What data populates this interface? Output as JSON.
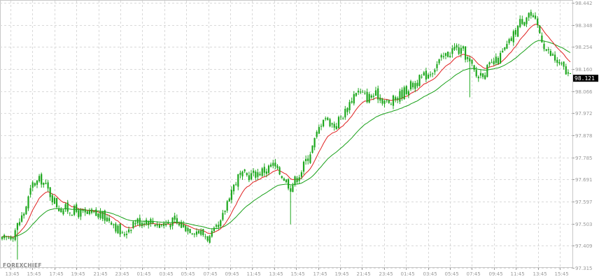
{
  "brand": {
    "label": "FOREXCHIEF"
  },
  "chart_data": {
    "type": "candlestick",
    "y_ticks": [
      97.315,
      97.409,
      97.503,
      97.597,
      97.691,
      97.785,
      97.878,
      97.972,
      98.066,
      98.16,
      98.254,
      98.348,
      98.442
    ],
    "y_tick_labels": [
      "97.315",
      "97.409",
      "97.503",
      "97.597",
      "97.691",
      "97.785",
      "97.878",
      "97.972",
      "98.066",
      "98.160",
      "98.254",
      "98.348",
      "98.442"
    ],
    "ylim": [
      97.315,
      98.442
    ],
    "x_tick_labels": [
      "13:45",
      "15:45",
      "17:45",
      "19:45",
      "21:45",
      "23:45",
      "01:45",
      "03:45",
      "05:45",
      "07:45",
      "09:45",
      "11:45",
      "13:45",
      "15:45",
      "17:45",
      "19:45",
      "21:45",
      "23:45",
      "01:45",
      "03:45",
      "05:45",
      "07:45",
      "09:45",
      "11:45",
      "13:45",
      "15:45"
    ],
    "grid": true,
    "last_price": {
      "value": 98.121,
      "label": "98.121",
      "color": "#000000"
    },
    "colors": {
      "candle": "#1ea81e",
      "ma_fast": "#e02020",
      "ma_slow": "#18a018",
      "grid": "#d9d9d9"
    },
    "close_anchors": [
      [
        0,
        97.43
      ],
      [
        5,
        97.46
      ],
      [
        10,
        97.55
      ],
      [
        14,
        97.67
      ],
      [
        18,
        97.69
      ],
      [
        22,
        97.63
      ],
      [
        26,
        97.57
      ],
      [
        32,
        97.56
      ],
      [
        38,
        97.54
      ],
      [
        44,
        97.54
      ],
      [
        50,
        97.52
      ],
      [
        55,
        97.45
      ],
      [
        60,
        97.51
      ],
      [
        66,
        97.52
      ],
      [
        72,
        97.5
      ],
      [
        78,
        97.51
      ],
      [
        84,
        97.49
      ],
      [
        90,
        97.47
      ],
      [
        95,
        97.44
      ],
      [
        100,
        97.5
      ],
      [
        104,
        97.63
      ],
      [
        108,
        97.7
      ],
      [
        114,
        97.71
      ],
      [
        120,
        97.73
      ],
      [
        124,
        97.75
      ],
      [
        128,
        97.71
      ],
      [
        132,
        97.66
      ],
      [
        137,
        97.73
      ],
      [
        142,
        97.83
      ],
      [
        147,
        97.96
      ],
      [
        152,
        97.92
      ],
      [
        157,
        97.98
      ],
      [
        162,
        98.07
      ],
      [
        167,
        98.04
      ],
      [
        172,
        98.05
      ],
      [
        177,
        98.01
      ],
      [
        182,
        98.05
      ],
      [
        187,
        98.09
      ],
      [
        192,
        98.12
      ],
      [
        197,
        98.16
      ],
      [
        202,
        98.21
      ],
      [
        207,
        98.25
      ],
      [
        212,
        98.22
      ],
      [
        217,
        98.13
      ],
      [
        222,
        98.16
      ],
      [
        227,
        98.2
      ],
      [
        232,
        98.27
      ],
      [
        237,
        98.36
      ],
      [
        241,
        98.4
      ],
      [
        245,
        98.34
      ],
      [
        249,
        98.24
      ],
      [
        253,
        98.2
      ],
      [
        257,
        98.16
      ],
      [
        260,
        98.12
      ]
    ],
    "spikes": [
      {
        "index": 7,
        "low": 97.35
      },
      {
        "index": 132,
        "low": 97.5
      },
      {
        "index": 214,
        "low": 98.04
      }
    ]
  }
}
